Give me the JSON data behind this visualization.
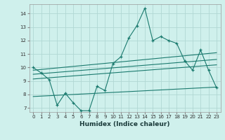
{
  "xlabel": "Humidex (Indice chaleur)",
  "bg_color": "#cff0ec",
  "grid_color": "#b0d8d4",
  "line_color": "#1a7a6e",
  "xlim": [
    -0.5,
    23.5
  ],
  "ylim": [
    6.7,
    14.7
  ],
  "yticks": [
    7,
    8,
    9,
    10,
    11,
    12,
    13,
    14
  ],
  "xticks": [
    0,
    1,
    2,
    3,
    4,
    5,
    6,
    7,
    8,
    9,
    10,
    11,
    12,
    13,
    14,
    15,
    16,
    17,
    18,
    19,
    20,
    21,
    22,
    23
  ],
  "main_line": {
    "x": [
      0,
      1,
      2,
      3,
      4,
      5,
      6,
      7,
      8,
      9,
      10,
      11,
      12,
      13,
      14,
      15,
      16,
      17,
      18,
      19,
      20,
      21,
      22,
      23
    ],
    "y": [
      10.0,
      9.6,
      9.1,
      7.2,
      8.1,
      7.4,
      6.8,
      6.8,
      8.6,
      8.3,
      10.3,
      10.8,
      12.2,
      13.1,
      14.4,
      12.0,
      12.3,
      12.0,
      11.8,
      10.5,
      9.8,
      11.3,
      9.8,
      8.5
    ]
  },
  "upper_line": {
    "x": [
      0,
      23
    ],
    "y": [
      9.8,
      11.1
    ]
  },
  "mid_upper_line": {
    "x": [
      0,
      23
    ],
    "y": [
      9.5,
      10.6
    ]
  },
  "mid_lower_line": {
    "x": [
      0,
      23
    ],
    "y": [
      9.15,
      10.2
    ]
  },
  "lower_line": {
    "x": [
      0,
      23
    ],
    "y": [
      7.85,
      8.55
    ]
  }
}
